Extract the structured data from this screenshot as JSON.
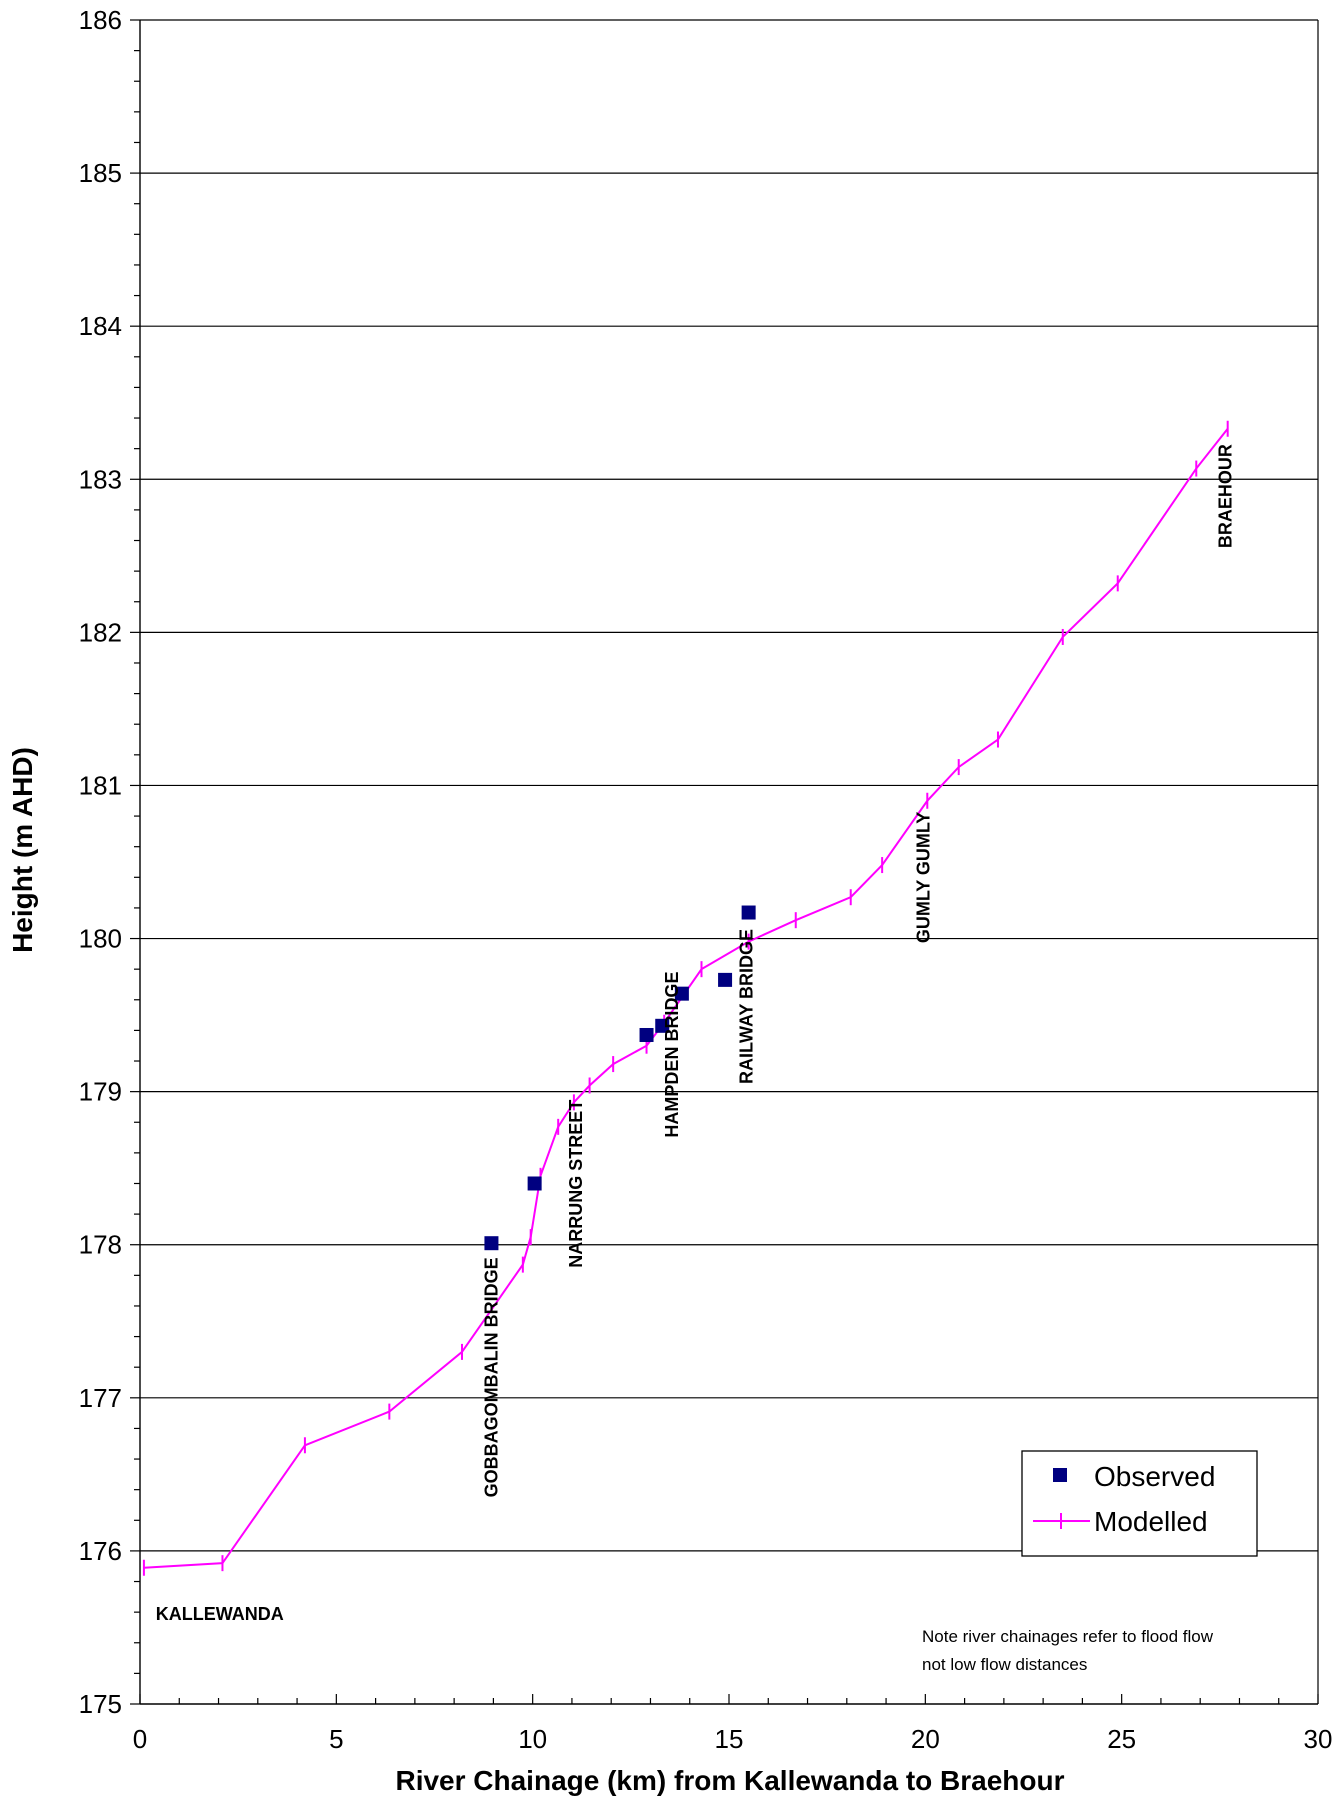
{
  "chart_data": {
    "type": "scatter",
    "xlabel": "River Chainage (km) from Kallewanda to Braehour",
    "ylabel": "Height (m AHD)",
    "xlim": [
      0,
      30
    ],
    "ylim": [
      175,
      186
    ],
    "x_ticks": [
      0,
      5,
      10,
      15,
      20,
      25,
      30
    ],
    "y_ticks": [
      175,
      176,
      177,
      178,
      179,
      180,
      181,
      182,
      183,
      184,
      185,
      186
    ],
    "grid": "horizontal",
    "legend_position": "bottom-right",
    "colors": {
      "observed": "#000080",
      "modelled": "#ff00ff"
    },
    "series": [
      {
        "name": "Observed",
        "marker": "square",
        "x": [
          8.95,
          10.05,
          12.9,
          13.3,
          13.8,
          14.9,
          15.5
        ],
        "y": [
          178.01,
          178.4,
          179.37,
          179.43,
          179.64,
          179.73,
          180.17
        ]
      },
      {
        "name": "Modelled",
        "marker": "vertical-tick",
        "x": [
          0.1,
          2.1,
          4.2,
          6.35,
          8.2,
          9.75,
          9.95,
          10.2,
          10.65,
          11.05,
          11.45,
          12.05,
          12.9,
          13.35,
          14.3,
          15.5,
          16.7,
          18.1,
          18.9,
          20.05,
          20.85,
          21.85,
          23.5,
          24.9,
          26.9,
          27.7
        ],
        "y": [
          175.89,
          175.92,
          176.69,
          176.91,
          177.3,
          177.87,
          178.05,
          178.45,
          178.77,
          178.93,
          179.04,
          179.18,
          179.3,
          179.45,
          179.8,
          179.98,
          180.12,
          180.27,
          180.48,
          180.9,
          181.12,
          181.3,
          181.97,
          182.32,
          183.07,
          183.33
        ]
      }
    ],
    "annotations": [
      {
        "text": "KALLEWANDA",
        "x": 0.4,
        "y": 175.55,
        "rotation": 0
      },
      {
        "text": "GOBBAGOMBALIN BRIDGE",
        "x": 9.1,
        "y": 176.35,
        "rotation": -90
      },
      {
        "text": "NARRUNG STREET",
        "x": 11.25,
        "y": 177.85,
        "rotation": -90
      },
      {
        "text": "HAMPDEN BRIDGE",
        "x": 13.7,
        "y": 178.7,
        "rotation": -90
      },
      {
        "text": "RAILWAY BRIDGE",
        "x": 15.6,
        "y": 179.05,
        "rotation": -90
      },
      {
        "text": "GUMLY GUMLY",
        "x": 20.1,
        "y": 179.97,
        "rotation": -90
      },
      {
        "text": "BRAEHOUR",
        "x": 27.8,
        "y": 182.55,
        "rotation": -90
      }
    ],
    "note": [
      "Note river chainages refer to flood flow",
      "not low flow distances"
    ]
  }
}
